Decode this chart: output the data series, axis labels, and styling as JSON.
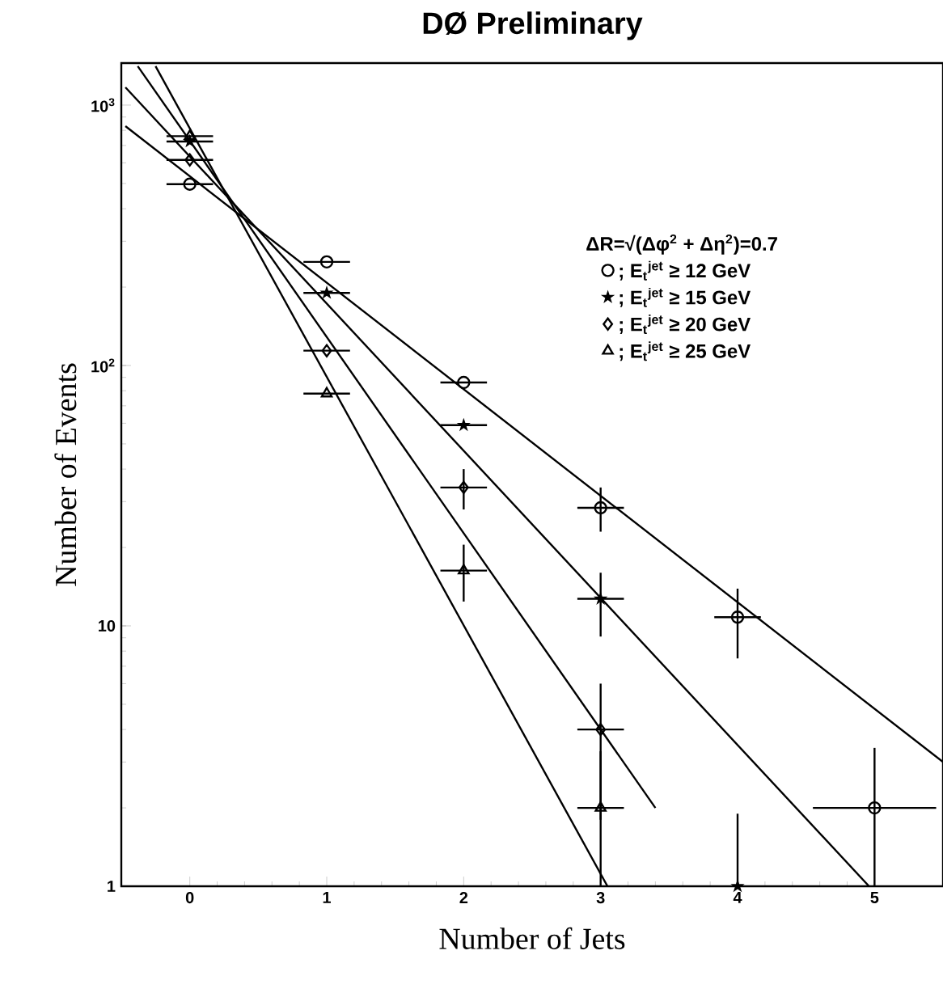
{
  "chart_data": {
    "type": "scatter",
    "title": "DØ Preliminary",
    "xlabel": "Number of Jets",
    "ylabel": "Number of Events",
    "legend_title": "ΔR=√(Δφ$^{2}$ + Δη$^{2}$)=0.7",
    "legend": "top right",
    "log": "y",
    "line_style": "solid",
    "xlim": [
      -0.5,
      5.5
    ],
    "ylim": [
      1,
      1450
    ],
    "xticks": [
      0,
      1,
      2,
      3,
      4,
      5
    ],
    "yticks": [
      1,
      10,
      {
        "value": 100,
        "label": "10$^{2}$"
      },
      {
        "value": 1000,
        "label": "10$^{3}$"
      }
    ],
    "series": [
      {
        "name": "; E$_{t}$$^{jet}$ ≥ 12 GeV",
        "color": "#000000",
        "marker": "circle",
        "x": [
          0,
          1,
          2,
          3,
          4,
          5
        ],
        "values": [
          497,
          250,
          86,
          28.4,
          10.8,
          2
        ],
        "errors": [
          null,
          null,
          null,
          [
            23,
            34
          ],
          [
            7.5,
            13.9
          ],
          [
            1,
            3.4
          ]
        ],
        "xerrors": [
          0.17,
          0.17,
          0.17,
          0.17,
          0.17,
          0.45
        ]
      },
      {
        "name": "; E$_{t}$$^{jet}$ ≥ 15 GeV",
        "color": "#000000",
        "marker": "star",
        "x": [
          0,
          1,
          2,
          3,
          4
        ],
        "values": [
          725,
          190,
          59,
          12.7,
          1
        ],
        "errors": [
          null,
          null,
          null,
          [
            9.1,
            16
          ],
          [
            1,
            1.9
          ]
        ],
        "xerrors": [
          0.17,
          0.17,
          0.17,
          0.17,
          null
        ]
      },
      {
        "name": "; E$_{t}$$^{jet}$ ≥ 20 GeV",
        "color": "#000000",
        "marker": "diamond",
        "x": [
          0,
          1,
          2,
          3
        ],
        "values": [
          616,
          114,
          34,
          4.0
        ],
        "errors": [
          null,
          null,
          [
            28,
            40
          ],
          [
            1.8,
            6
          ]
        ],
        "xerrors": [
          0.17,
          0.17,
          0.17,
          0.17
        ]
      },
      {
        "name": "; E$_{t}$$^{jet}$ ≥ 25 GeV",
        "color": "#000000",
        "marker": "triangle",
        "x": [
          0,
          1,
          2,
          3
        ],
        "values": [
          760,
          78,
          16.3,
          2
        ],
        "errors": [
          null,
          null,
          [
            12.4,
            20.5
          ],
          [
            1,
            3.3
          ]
        ],
        "xerrors": [
          0.17,
          0.17,
          0.17,
          0.17
        ]
      },
      {
        "type": "line",
        "color": "#000000",
        "x": [
          -0.47,
          5.5
        ],
        "values": [
          830,
          3.0
        ]
      },
      {
        "type": "line",
        "color": "#000000",
        "x": [
          -0.47,
          4.96
        ],
        "values": [
          1170,
          1
        ]
      },
      {
        "type": "line",
        "color": "#000000",
        "x": [
          -0.38,
          3.4
        ],
        "values": [
          1410,
          2.0
        ]
      },
      {
        "type": "line",
        "color": "#000000",
        "x": [
          -0.25,
          3.05
        ],
        "values": [
          1410,
          1
        ]
      }
    ]
  }
}
